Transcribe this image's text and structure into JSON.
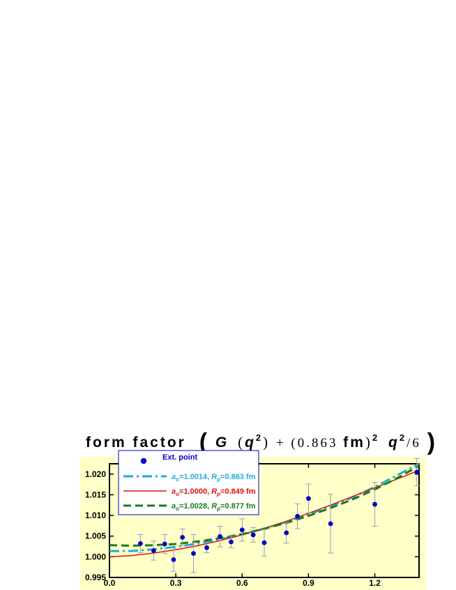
{
  "chart_data": {
    "type": "scatter",
    "title": {
      "prefix": "form factor",
      "open_paren": "(",
      "g": "G",
      "q": "q",
      "sq": "2",
      "plus": " + (0.863 ",
      "fm": "fm",
      "sup_close": ")",
      "sq2": "2",
      "q2": "q",
      "sq3": "2",
      "div": "/6",
      "close_paren": ")"
    },
    "xlim": [
      0.0,
      1.4
    ],
    "ylim": [
      0.995,
      1.0225
    ],
    "x_ticks": [
      0.0,
      0.3,
      0.6,
      0.9,
      1.2
    ],
    "x_tick_labels": [
      "0.0",
      "0.3",
      "0.6",
      "0.9",
      "1.2"
    ],
    "y_ticks": [
      0.995,
      1.0,
      1.005,
      1.01,
      1.015,
      1.02
    ],
    "y_tick_labels": [
      "0.995",
      "1.000",
      "1.005",
      "1.010",
      "1.015",
      "1.020"
    ],
    "background_color": "#ffffc8",
    "legend_position": "top-left",
    "points": {
      "name": "Ext. point",
      "color": "#0000cc",
      "errorbar_color": "#9a9ab8",
      "x": [
        0.14,
        0.2,
        0.25,
        0.29,
        0.33,
        0.38,
        0.44,
        0.5,
        0.55,
        0.6,
        0.65,
        0.7,
        0.8,
        0.85,
        0.9,
        1.0,
        1.2,
        1.39
      ],
      "y": [
        1.0032,
        1.0015,
        1.0031,
        0.9993,
        1.0047,
        1.0008,
        1.0022,
        1.0049,
        1.0036,
        1.0065,
        1.0053,
        1.0034,
        1.0058,
        1.0098,
        1.0141,
        1.008,
        1.0127,
        1.0205
      ],
      "err": [
        0.0022,
        0.0023,
        0.0023,
        0.0028,
        0.002,
        0.0046,
        0.0012,
        0.0025,
        0.0014,
        0.0027,
        0.0018,
        0.0032,
        0.0025,
        0.003,
        0.0035,
        0.0071,
        0.0053,
        0.0033
      ]
    },
    "series": [
      {
        "name_main": "=1.0014, ",
        "a_label": "a",
        "a_sub": "o",
        "r_label": "R",
        "r_sub": "p",
        "r_value": "=0.863 fm",
        "color": "#22aadd",
        "dash": "14 5 3 5",
        "width": 3,
        "x": [
          0.0,
          0.1,
          0.2,
          0.3,
          0.4,
          0.5,
          0.6,
          0.7,
          0.8,
          0.9,
          1.0,
          1.1,
          1.2,
          1.3,
          1.4
        ],
        "y": [
          1.0014,
          1.0014,
          1.0018,
          1.0024,
          1.0032,
          1.0042,
          1.0054,
          1.0068,
          1.0084,
          1.0102,
          1.0122,
          1.0144,
          1.0169,
          1.0197,
          1.0225
        ]
      },
      {
        "name_main": "=1.0000, ",
        "a_label": "a",
        "a_sub": "o",
        "r_label": "R",
        "r_sub": "p",
        "r_value": "=0.849 fm",
        "color": "#dd1111",
        "dash": "",
        "width": 1.5,
        "x": [
          0.0,
          0.1,
          0.2,
          0.3,
          0.4,
          0.5,
          0.6,
          0.7,
          0.8,
          0.9,
          1.0,
          1.1,
          1.2,
          1.3,
          1.4
        ],
        "y": [
          1.0,
          1.0003,
          1.0009,
          1.0017,
          1.0027,
          1.0039,
          1.0053,
          1.0069,
          1.0086,
          1.0105,
          1.0125,
          1.0146,
          1.0167,
          1.0188,
          1.0209
        ]
      },
      {
        "name_main": "=1.0028, ",
        "a_label": "a",
        "a_sub": "o",
        "r_label": "R",
        "r_sub": "p",
        "r_value": "=0.877 fm",
        "color": "#1a7a1a",
        "dash": "11 6",
        "width": 3,
        "x": [
          0.0,
          0.1,
          0.2,
          0.3,
          0.4,
          0.5,
          0.6,
          0.7,
          0.8,
          0.9,
          1.0,
          1.1,
          1.2,
          1.3,
          1.4
        ],
        "y": [
          1.0028,
          1.0027,
          1.0028,
          1.0031,
          1.0037,
          1.0045,
          1.0055,
          1.0068,
          1.0082,
          1.0099,
          1.0118,
          1.0139,
          1.0163,
          1.019,
          1.022
        ]
      }
    ]
  }
}
